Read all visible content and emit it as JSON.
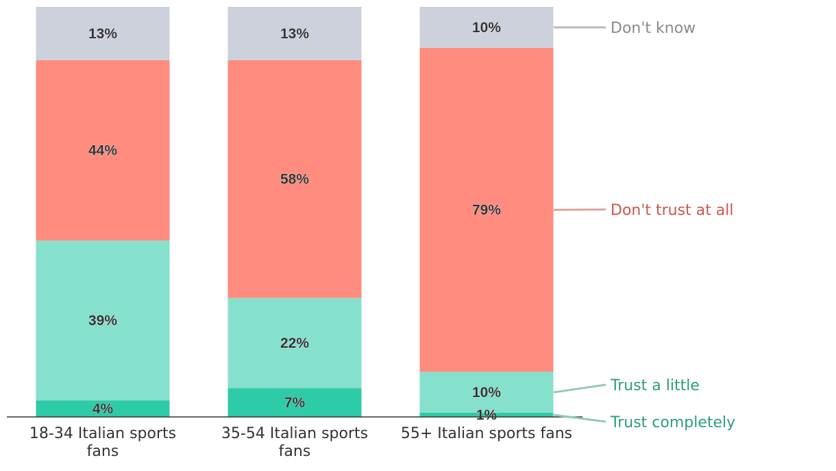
{
  "chart_data": {
    "type": "bar",
    "stacked": true,
    "categories": [
      [
        "18-34 Italian sports",
        "fans"
      ],
      [
        "35-54 Italian sports",
        "fans"
      ],
      [
        "55+ Italian sports fans"
      ]
    ],
    "series": [
      {
        "name": "Trust completely",
        "values": [
          4,
          7,
          1
        ],
        "labels": [
          "4%",
          "7%",
          "1%"
        ],
        "color": "#2ecba8",
        "legend_color": "#2a9d7e"
      },
      {
        "name": "Trust a little",
        "values": [
          39,
          22,
          10
        ],
        "labels": [
          "39%",
          "22%",
          "10%"
        ],
        "color": "#85e0cc",
        "legend_color": "#2a9d7e"
      },
      {
        "name": "Don't trust at all",
        "values": [
          44,
          58,
          79
        ],
        "labels": [
          "44%",
          "58%",
          "79%"
        ],
        "color": "#ff8c7f",
        "legend_color": "#c9574b"
      },
      {
        "name": "Don't know",
        "values": [
          13,
          13,
          10
        ],
        "labels": [
          "13%",
          "13%",
          "10%"
        ],
        "color": "#cdd1dc",
        "legend_color": "#8a8a8a"
      }
    ],
    "ylim": [
      0,
      100
    ],
    "grid": false,
    "legend": "right, inline labels with leader lines"
  }
}
